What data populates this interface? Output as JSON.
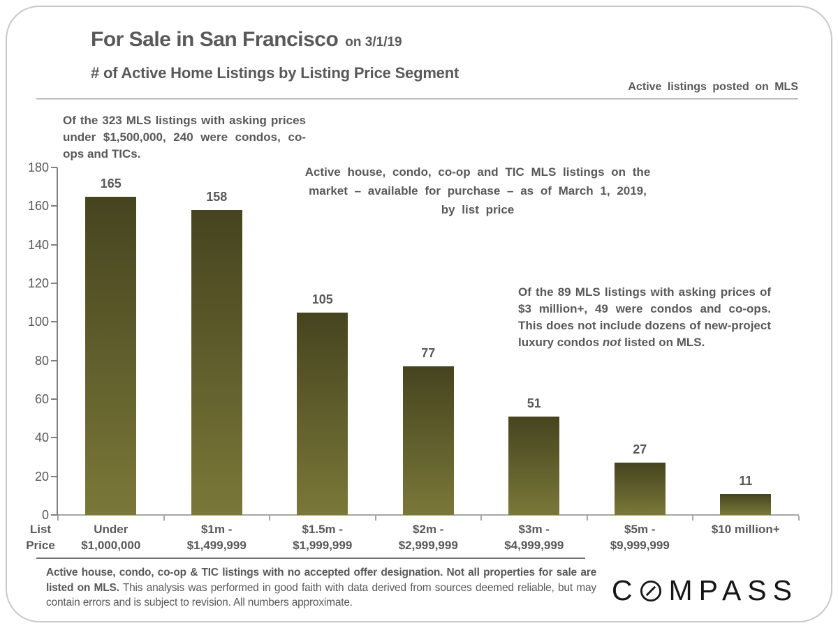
{
  "header": {
    "title": "For Sale in San Francisco",
    "title_suffix": "on 3/1/19",
    "subtitle": "# of Active Home Listings by Listing Price Segment",
    "mls_note": "Active listings posted on MLS"
  },
  "annotations": {
    "left": "Of the 323 MLS listings with asking prices under $1,500,000, 240 were condos, co-ops and TICs.",
    "center": "Active house, condo, co-op and TIC MLS listings on the market – available for purchase – as of March 1, 2019, by list price",
    "right_before": "Of the 89 MLS listings with asking prices of $3 million+, 49 were condos and co-ops. This does not include dozens of new-project luxury condos ",
    "right_italic": "not",
    "right_after": " listed on MLS."
  },
  "chart_data": {
    "type": "bar",
    "title": "# of Active Home Listings by Listing Price Segment",
    "categories": [
      "Under $1,000,000",
      "$1m - $1,499,999",
      "$1.5m - $1,999,999",
      "$2m - $2,999,999",
      "$3m - $4,999,999",
      "$5m - $9,999,999",
      "$10 million+"
    ],
    "categories_lines": [
      [
        "Under",
        "$1,000,000"
      ],
      [
        "$1m -",
        "$1,499,999"
      ],
      [
        "$1.5m -",
        "$1,999,999"
      ],
      [
        "$2m -",
        "$2,999,999"
      ],
      [
        "$3m -",
        "$4,999,999"
      ],
      [
        "$5m -",
        "$9,999,999"
      ],
      [
        "$10 million+"
      ]
    ],
    "values": [
      165,
      158,
      105,
      77,
      51,
      27,
      11
    ],
    "xlabel": "List Price",
    "xlabel_lines": [
      "List",
      "Price"
    ],
    "ylabel": "",
    "ylim": [
      0,
      180
    ],
    "y_ticks": [
      0,
      20,
      40,
      60,
      80,
      100,
      120,
      140,
      160,
      180
    ],
    "grid": false,
    "legend": false,
    "bar_gradient_top": "#46441f",
    "bar_gradient_bottom": "#7a7838"
  },
  "footer": {
    "bold": "Active house, condo, co-op & TIC listings with no accepted offer designation. Not all properties for sale are listed on MLS.",
    "regular": " This analysis was performed in good faith with data derived from sources deemed reliable, but may contain errors and is subject to revision. All numbers approximate.",
    "logo_c": "C",
    "logo_rest": "MPASS"
  },
  "colors": {
    "text": "#595959",
    "axis": "#808080",
    "baseline": "#a6a6a6",
    "logo": "#161616"
  }
}
